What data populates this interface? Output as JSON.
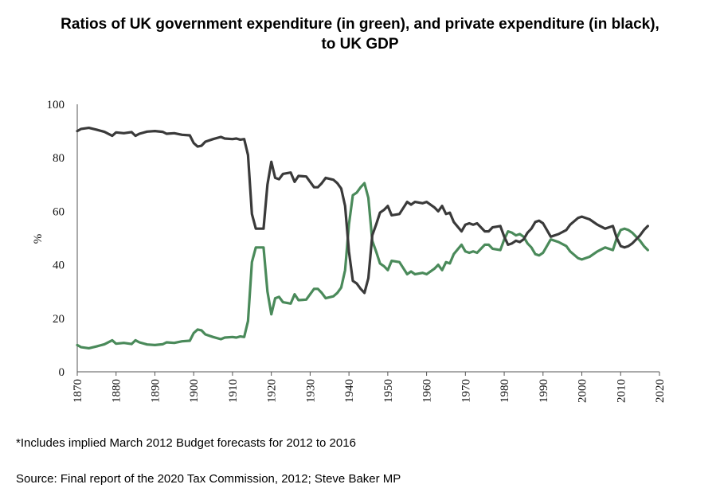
{
  "chart_data": {
    "type": "line",
    "title_lines": [
      "Ratios of UK government expenditure (in green), and private expenditure (in black),",
      "to UK GDP"
    ],
    "ylabel": "%",
    "xlabel": "",
    "xlim": [
      1870,
      2020
    ],
    "ylim": [
      0,
      100
    ],
    "x_ticks": [
      1870,
      1880,
      1890,
      1900,
      1910,
      1920,
      1930,
      1940,
      1950,
      1960,
      1970,
      1980,
      1990,
      2000,
      2010,
      2020
    ],
    "y_ticks": [
      0,
      20,
      40,
      60,
      80,
      100
    ],
    "grid": false,
    "series": [
      {
        "color": "#4a8a5a",
        "points": [
          [
            1870,
            10
          ],
          [
            1871,
            9.2
          ],
          [
            1873,
            8.8
          ],
          [
            1875,
            9.5
          ],
          [
            1877,
            10.3
          ],
          [
            1879,
            11.8
          ],
          [
            1880,
            10.5
          ],
          [
            1882,
            10.8
          ],
          [
            1884,
            10.4
          ],
          [
            1885,
            11.8
          ],
          [
            1886,
            11
          ],
          [
            1888,
            10.2
          ],
          [
            1890,
            10
          ],
          [
            1892,
            10.3
          ],
          [
            1893,
            11
          ],
          [
            1895,
            10.8
          ],
          [
            1897,
            11.4
          ],
          [
            1899,
            11.6
          ],
          [
            1900,
            14.5
          ],
          [
            1901,
            15.8
          ],
          [
            1902,
            15.5
          ],
          [
            1903,
            14
          ],
          [
            1905,
            13
          ],
          [
            1907,
            12.2
          ],
          [
            1908,
            12.8
          ],
          [
            1910,
            13
          ],
          [
            1911,
            12.8
          ],
          [
            1912,
            13.2
          ],
          [
            1913,
            13
          ],
          [
            1914,
            19
          ],
          [
            1915,
            41
          ],
          [
            1916,
            46.5
          ],
          [
            1918,
            46.5
          ],
          [
            1919,
            30
          ],
          [
            1920,
            21.5
          ],
          [
            1921,
            27.5
          ],
          [
            1922,
            28
          ],
          [
            1923,
            26
          ],
          [
            1925,
            25.5
          ],
          [
            1926,
            29
          ],
          [
            1927,
            26.8
          ],
          [
            1929,
            27
          ],
          [
            1931,
            31
          ],
          [
            1932,
            31
          ],
          [
            1933,
            29.5
          ],
          [
            1934,
            27.5
          ],
          [
            1936,
            28.2
          ],
          [
            1937,
            29.5
          ],
          [
            1938,
            31.5
          ],
          [
            1939,
            38
          ],
          [
            1940,
            55
          ],
          [
            1941,
            66
          ],
          [
            1942,
            67
          ],
          [
            1943,
            69
          ],
          [
            1944,
            70.5
          ],
          [
            1945,
            65
          ],
          [
            1946,
            49
          ],
          [
            1947,
            45
          ],
          [
            1948,
            40.5
          ],
          [
            1949,
            39.5
          ],
          [
            1950,
            38
          ],
          [
            1951,
            41.5
          ],
          [
            1953,
            41
          ],
          [
            1955,
            36.5
          ],
          [
            1956,
            37.5
          ],
          [
            1957,
            36.5
          ],
          [
            1959,
            37
          ],
          [
            1960,
            36.5
          ],
          [
            1962,
            38.5
          ],
          [
            1963,
            40
          ],
          [
            1964,
            38
          ],
          [
            1965,
            41
          ],
          [
            1966,
            40.5
          ],
          [
            1967,
            44
          ],
          [
            1969,
            47.5
          ],
          [
            1970,
            45
          ],
          [
            1971,
            44.5
          ],
          [
            1972,
            45
          ],
          [
            1973,
            44.5
          ],
          [
            1975,
            47.5
          ],
          [
            1976,
            47.5
          ],
          [
            1977,
            46
          ],
          [
            1979,
            45.5
          ],
          [
            1980,
            49.5
          ],
          [
            1981,
            52.5
          ],
          [
            1982,
            52
          ],
          [
            1983,
            51
          ],
          [
            1984,
            51.5
          ],
          [
            1985,
            50.5
          ],
          [
            1986,
            48
          ],
          [
            1987,
            46.5
          ],
          [
            1988,
            44
          ],
          [
            1989,
            43.5
          ],
          [
            1990,
            44.5
          ],
          [
            1992,
            49.5
          ],
          [
            1994,
            48.5
          ],
          [
            1996,
            47
          ],
          [
            1997,
            45
          ],
          [
            1999,
            42.5
          ],
          [
            2000,
            42
          ],
          [
            2002,
            43
          ],
          [
            2004,
            45
          ],
          [
            2006,
            46.5
          ],
          [
            2008,
            45.5
          ],
          [
            2009,
            50
          ],
          [
            2010,
            53
          ],
          [
            2011,
            53.5
          ],
          [
            2012,
            53
          ],
          [
            2013,
            52
          ],
          [
            2015,
            49
          ],
          [
            2016,
            47
          ],
          [
            2017,
            45.5
          ]
        ]
      },
      {
        "color": "#3a3a3a",
        "points": [
          [
            1870,
            90
          ],
          [
            1871,
            90.8
          ],
          [
            1873,
            91.2
          ],
          [
            1875,
            90.5
          ],
          [
            1877,
            89.7
          ],
          [
            1879,
            88.2
          ],
          [
            1880,
            89.5
          ],
          [
            1882,
            89.2
          ],
          [
            1884,
            89.6
          ],
          [
            1885,
            88.2
          ],
          [
            1886,
            89
          ],
          [
            1888,
            89.8
          ],
          [
            1890,
            90
          ],
          [
            1892,
            89.7
          ],
          [
            1893,
            89
          ],
          [
            1895,
            89.2
          ],
          [
            1897,
            88.6
          ],
          [
            1899,
            88.4
          ],
          [
            1900,
            85.5
          ],
          [
            1901,
            84.2
          ],
          [
            1902,
            84.5
          ],
          [
            1903,
            86
          ],
          [
            1905,
            87
          ],
          [
            1907,
            87.8
          ],
          [
            1908,
            87.2
          ],
          [
            1910,
            87
          ],
          [
            1911,
            87.2
          ],
          [
            1912,
            86.8
          ],
          [
            1913,
            87
          ],
          [
            1914,
            81
          ],
          [
            1915,
            59
          ],
          [
            1916,
            53.5
          ],
          [
            1918,
            53.5
          ],
          [
            1919,
            70
          ],
          [
            1920,
            78.5
          ],
          [
            1921,
            72.5
          ],
          [
            1922,
            72
          ],
          [
            1923,
            74
          ],
          [
            1925,
            74.5
          ],
          [
            1926,
            71
          ],
          [
            1927,
            73.2
          ],
          [
            1929,
            73
          ],
          [
            1931,
            69
          ],
          [
            1932,
            69
          ],
          [
            1933,
            70.5
          ],
          [
            1934,
            72.5
          ],
          [
            1936,
            71.8
          ],
          [
            1937,
            70.5
          ],
          [
            1938,
            68.5
          ],
          [
            1939,
            62
          ],
          [
            1940,
            45
          ],
          [
            1941,
            34
          ],
          [
            1942,
            33
          ],
          [
            1943,
            31
          ],
          [
            1944,
            29.5
          ],
          [
            1945,
            35
          ],
          [
            1946,
            51
          ],
          [
            1947,
            55
          ],
          [
            1948,
            59.5
          ],
          [
            1949,
            60.5
          ],
          [
            1950,
            62
          ],
          [
            1951,
            58.5
          ],
          [
            1953,
            59
          ],
          [
            1955,
            63.5
          ],
          [
            1956,
            62.5
          ],
          [
            1957,
            63.5
          ],
          [
            1959,
            63
          ],
          [
            1960,
            63.5
          ],
          [
            1962,
            61.5
          ],
          [
            1963,
            60
          ],
          [
            1964,
            62
          ],
          [
            1965,
            59
          ],
          [
            1966,
            59.5
          ],
          [
            1967,
            56
          ],
          [
            1969,
            52.5
          ],
          [
            1970,
            55
          ],
          [
            1971,
            55.5
          ],
          [
            1972,
            55
          ],
          [
            1973,
            55.5
          ],
          [
            1975,
            52.5
          ],
          [
            1976,
            52.5
          ],
          [
            1977,
            54
          ],
          [
            1979,
            54.5
          ],
          [
            1980,
            50.5
          ],
          [
            1981,
            47.5
          ],
          [
            1982,
            48
          ],
          [
            1983,
            49
          ],
          [
            1984,
            48.5
          ],
          [
            1985,
            49.5
          ],
          [
            1986,
            52
          ],
          [
            1987,
            53.5
          ],
          [
            1988,
            56
          ],
          [
            1989,
            56.5
          ],
          [
            1990,
            55.5
          ],
          [
            1992,
            50.5
          ],
          [
            1994,
            51.5
          ],
          [
            1996,
            53
          ],
          [
            1997,
            55
          ],
          [
            1999,
            57.5
          ],
          [
            2000,
            58
          ],
          [
            2002,
            57
          ],
          [
            2004,
            55
          ],
          [
            2006,
            53.5
          ],
          [
            2008,
            54.5
          ],
          [
            2009,
            50
          ],
          [
            2010,
            47
          ],
          [
            2011,
            46.5
          ],
          [
            2012,
            47
          ],
          [
            2013,
            48
          ],
          [
            2015,
            51
          ],
          [
            2016,
            53
          ],
          [
            2017,
            54.5
          ]
        ]
      }
    ]
  },
  "footnotes": {
    "note": "*Includes implied March 2012 Budget forecasts for 2012 to 2016",
    "source": "Source: Final report of the 2020 Tax Commission, 2012; Steve Baker MP"
  }
}
